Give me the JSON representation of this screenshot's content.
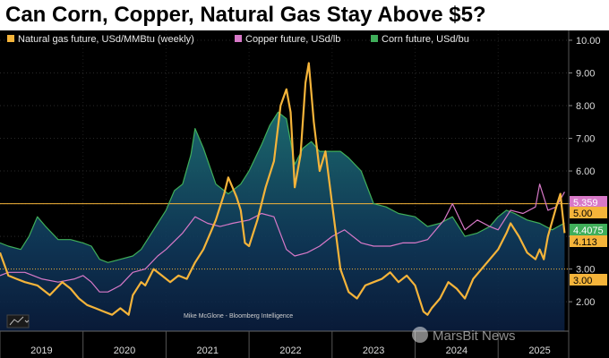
{
  "title": "Can Corn, Copper, Natural Gas Stay Above $5?",
  "credit": "Mike McGlone - Bloomberg Intelligence",
  "watermark": "MarsBit News",
  "chart_data": {
    "type": "line",
    "legend": [
      {
        "name": "Natural gas future, USd/MMBtu (weekly)",
        "color": "#f5b43a"
      },
      {
        "name": "Copper future, USd/lb",
        "color": "#d879c8"
      },
      {
        "name": "Corn future, USd/bu",
        "color": "#3fae5a"
      }
    ],
    "x_ticks": [
      "2019",
      "2020",
      "2021",
      "2022",
      "2023",
      "2024",
      "2025"
    ],
    "x_range": [
      2019.0,
      2025.85
    ],
    "y_ticks": [
      "2.00",
      "3.00",
      "4.00",
      "5.00",
      "6.00",
      "7.00",
      "8.00",
      "9.00",
      "10.00"
    ],
    "y_range": [
      1.1,
      10.3
    ],
    "reference_lines": [
      {
        "value": 5.0,
        "label": "5.00",
        "style": "solid"
      },
      {
        "value": 3.0,
        "label": "3.00",
        "style": "dotted"
      }
    ],
    "last_value_tags": [
      {
        "label": "5.359",
        "value": 5.359,
        "color": "#d879c8",
        "text_color": "#ffffff"
      },
      {
        "label": "5.00",
        "value": 5.0,
        "color": "#f5b43a",
        "text_color": "#000000"
      },
      {
        "label": "4.4075",
        "value": 4.4075,
        "color": "#3fae5a",
        "text_color": "#ffffff"
      },
      {
        "label": "4.113",
        "value": 4.113,
        "color": "#f5b43a",
        "text_color": "#000000"
      },
      {
        "label": "3.00",
        "value": 3.0,
        "color": "#f5b43a",
        "text_color": "#000000"
      }
    ],
    "series": [
      {
        "name": "Natural gas future, USd/MMBtu (weekly)",
        "color": "#f5b43a",
        "x": [
          2019.0,
          2019.1,
          2019.2,
          2019.3,
          2019.45,
          2019.6,
          2019.75,
          2019.85,
          2019.95,
          2020.05,
          2020.15,
          2020.25,
          2020.35,
          2020.45,
          2020.55,
          2020.6,
          2020.7,
          2020.75,
          2020.85,
          2020.95,
          2021.05,
          2021.15,
          2021.25,
          2021.35,
          2021.45,
          2021.55,
          2021.6,
          2021.7,
          2021.75,
          2021.8,
          2021.85,
          2021.9,
          2021.95,
          2022.0,
          2022.1,
          2022.15,
          2022.2,
          2022.3,
          2022.38,
          2022.45,
          2022.5,
          2022.55,
          2022.62,
          2022.68,
          2022.72,
          2022.78,
          2022.85,
          2022.92,
          2023.0,
          2023.1,
          2023.2,
          2023.3,
          2023.4,
          2023.5,
          2023.6,
          2023.7,
          2023.8,
          2023.9,
          2024.0,
          2024.1,
          2024.15,
          2024.2,
          2024.3,
          2024.4,
          2024.5,
          2024.6,
          2024.7,
          2024.8,
          2024.9,
          2025.0,
          2025.1,
          2025.15,
          2025.25,
          2025.35,
          2025.45,
          2025.5,
          2025.55,
          2025.6,
          2025.7,
          2025.75,
          2025.8
        ],
        "y": [
          3.5,
          2.8,
          2.7,
          2.6,
          2.5,
          2.2,
          2.6,
          2.4,
          2.1,
          1.9,
          1.8,
          1.7,
          1.6,
          1.8,
          1.6,
          2.2,
          2.6,
          2.5,
          3.0,
          2.8,
          2.6,
          2.8,
          2.7,
          3.2,
          3.6,
          4.2,
          4.5,
          5.3,
          5.8,
          5.5,
          5.2,
          4.8,
          3.8,
          3.7,
          4.5,
          5.0,
          5.5,
          6.3,
          8.0,
          8.5,
          7.8,
          5.5,
          6.5,
          8.7,
          9.3,
          7.5,
          6.0,
          6.6,
          5.0,
          3.0,
          2.3,
          2.1,
          2.5,
          2.6,
          2.7,
          2.9,
          2.6,
          2.8,
          2.5,
          1.7,
          1.6,
          1.8,
          2.1,
          2.6,
          2.4,
          2.1,
          2.7,
          3.0,
          3.3,
          3.6,
          4.1,
          4.4,
          4.0,
          3.5,
          3.3,
          3.6,
          3.3,
          4.0,
          4.9,
          5.3,
          4.1
        ]
      },
      {
        "name": "Copper future, USd/lb",
        "color": "#d879c8",
        "x": [
          2019.0,
          2019.1,
          2019.3,
          2019.5,
          2019.7,
          2019.9,
          2020.0,
          2020.1,
          2020.2,
          2020.3,
          2020.45,
          2020.6,
          2020.75,
          2020.9,
          2021.0,
          2021.2,
          2021.35,
          2021.5,
          2021.65,
          2021.8,
          2022.0,
          2022.15,
          2022.3,
          2022.45,
          2022.55,
          2022.7,
          2022.85,
          2023.0,
          2023.15,
          2023.35,
          2023.5,
          2023.7,
          2023.85,
          2024.0,
          2024.15,
          2024.35,
          2024.45,
          2024.6,
          2024.75,
          2024.9,
          2025.0,
          2025.15,
          2025.3,
          2025.45,
          2025.5,
          2025.6,
          2025.7,
          2025.8
        ],
        "y": [
          2.8,
          2.9,
          2.9,
          2.7,
          2.6,
          2.7,
          2.8,
          2.6,
          2.3,
          2.3,
          2.5,
          2.9,
          3.0,
          3.4,
          3.6,
          4.1,
          4.6,
          4.4,
          4.3,
          4.4,
          4.5,
          4.7,
          4.6,
          3.6,
          3.4,
          3.5,
          3.7,
          4.0,
          4.2,
          3.8,
          3.7,
          3.7,
          3.8,
          3.8,
          3.9,
          4.5,
          5.0,
          4.2,
          4.5,
          4.3,
          4.2,
          4.8,
          4.7,
          4.9,
          5.6,
          4.8,
          4.9,
          5.36
        ]
      },
      {
        "name": "Corn future, USd/bu",
        "color": "#3fae5a",
        "x": [
          2019.0,
          2019.1,
          2019.25,
          2019.35,
          2019.45,
          2019.55,
          2019.7,
          2019.85,
          2020.0,
          2020.1,
          2020.2,
          2020.3,
          2020.45,
          2020.6,
          2020.7,
          2020.85,
          2021.0,
          2021.1,
          2021.2,
          2021.3,
          2021.35,
          2021.45,
          2021.6,
          2021.75,
          2021.9,
          2022.0,
          2022.15,
          2022.25,
          2022.35,
          2022.45,
          2022.55,
          2022.65,
          2022.75,
          2022.85,
          2023.0,
          2023.1,
          2023.2,
          2023.35,
          2023.5,
          2023.65,
          2023.8,
          2024.0,
          2024.15,
          2024.3,
          2024.45,
          2024.6,
          2024.75,
          2024.9,
          2025.0,
          2025.1,
          2025.2,
          2025.35,
          2025.5,
          2025.65,
          2025.8
        ],
        "y": [
          3.8,
          3.7,
          3.6,
          4.0,
          4.6,
          4.3,
          3.9,
          3.9,
          3.8,
          3.7,
          3.3,
          3.2,
          3.3,
          3.4,
          3.6,
          4.2,
          4.8,
          5.4,
          5.6,
          6.5,
          7.3,
          6.7,
          5.6,
          5.3,
          5.6,
          6.0,
          6.8,
          7.4,
          7.8,
          7.6,
          6.2,
          6.7,
          6.9,
          6.6,
          6.6,
          6.6,
          6.4,
          6.0,
          5.0,
          4.9,
          4.7,
          4.6,
          4.3,
          4.4,
          4.6,
          4.0,
          4.1,
          4.3,
          4.6,
          4.8,
          4.7,
          4.5,
          4.4,
          4.2,
          4.41
        ]
      }
    ]
  }
}
